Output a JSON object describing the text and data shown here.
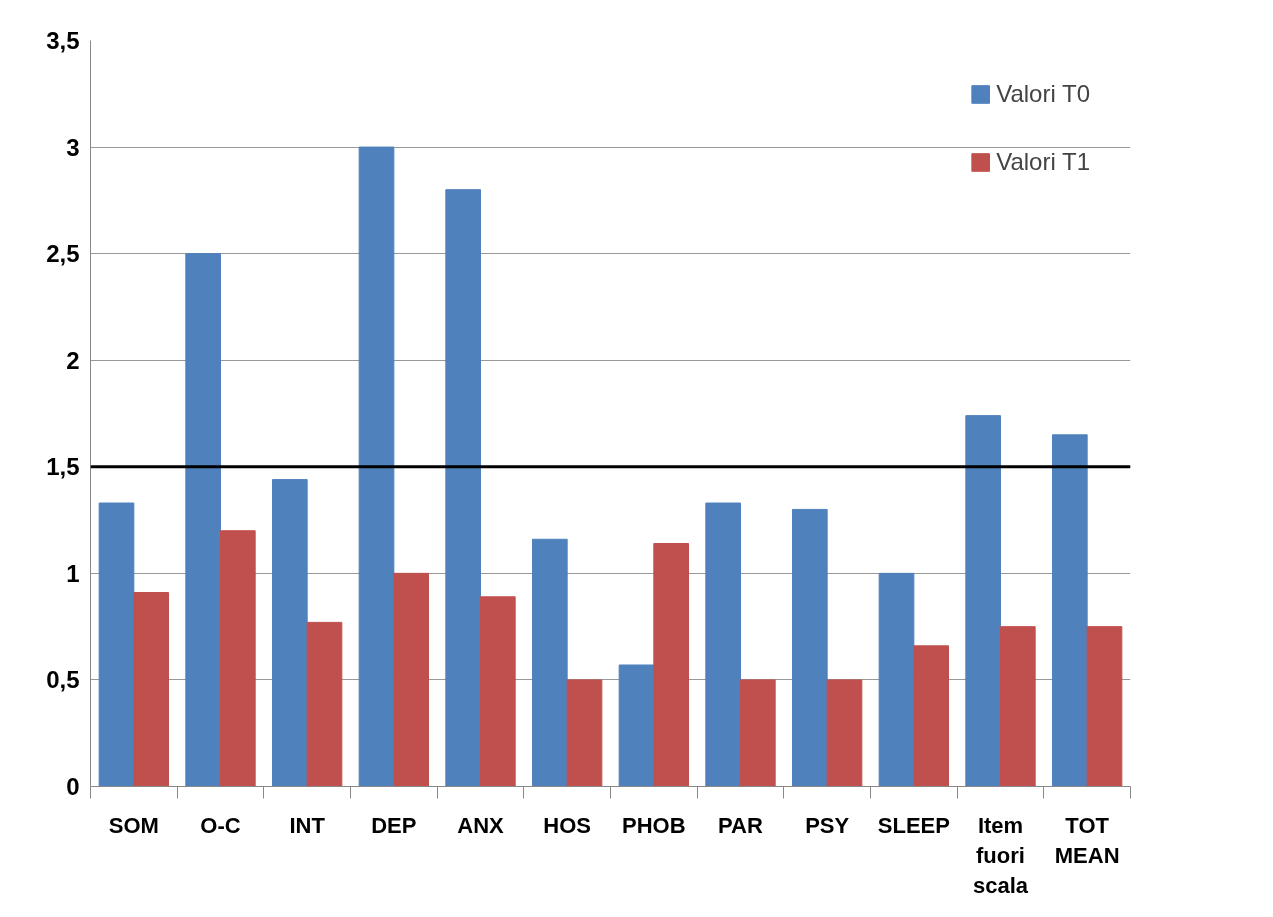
{
  "chart_data": {
    "type": "bar",
    "categories": [
      "SOM",
      "O-C",
      "INT",
      "DEP",
      "ANX",
      "HOS",
      "PHOB",
      "PAR",
      "PSY",
      "SLEEP",
      "Item fuori scala",
      "TOT MEAN"
    ],
    "series": [
      {
        "name": "Valori T0",
        "color": "#4f81bd",
        "values": [
          1.33,
          2.5,
          1.44,
          3,
          2.8,
          1.16,
          0.57,
          1.33,
          1.3,
          1,
          1.74,
          1.65
        ]
      },
      {
        "name": "Valori T1",
        "color": "#c0504d",
        "values": [
          0.91,
          1.2,
          0.77,
          1,
          0.89,
          0.5,
          1.14,
          0.5,
          0.5,
          0.66,
          0.75,
          0.75
        ]
      }
    ],
    "ylim": [
      0,
      3.5
    ],
    "yticks": [
      0,
      {
        "value": 0.5,
        "label": "0,5"
      },
      1,
      {
        "value": 1.5,
        "label": "1,5"
      },
      2,
      {
        "value": 2.5,
        "label": "2,5"
      },
      3,
      {
        "value": 3.5,
        "label": "3,5"
      }
    ],
    "grid": "y",
    "legend": "top right",
    "ref_lines": [
      {
        "axis": "y",
        "value": 1.5,
        "color": "#000000"
      }
    ]
  }
}
